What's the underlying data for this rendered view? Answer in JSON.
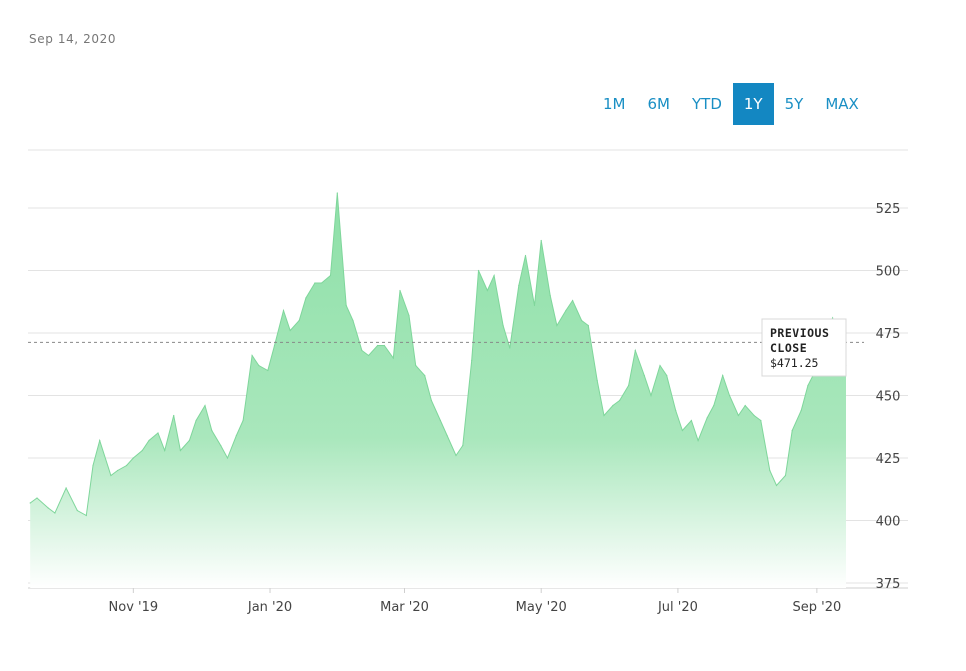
{
  "header": {
    "date": "Sep 14, 2020"
  },
  "range_selector": {
    "options": [
      "1M",
      "6M",
      "YTD",
      "1Y",
      "5Y",
      "MAX"
    ],
    "selected": "1Y"
  },
  "colors": {
    "area_fill": "#8ee0a8",
    "area_line": "#7fd69b",
    "accent": "#1387c2",
    "grid": "#e3e3e3",
    "reference_line": "#888888"
  },
  "chart_data": {
    "type": "area",
    "title": "",
    "xlabel": "",
    "ylabel": "",
    "ylim": [
      375,
      538
    ],
    "x_ticks": [
      "Nov '19",
      "Jan '20",
      "Mar '20",
      "May '20",
      "Jul '20",
      "Sep '20"
    ],
    "y_ticks": [
      375,
      400,
      425,
      450,
      475,
      500,
      525
    ],
    "grid": true,
    "reference_line": {
      "label_line1": "PREVIOUS",
      "label_line2": "CLOSE",
      "value_label": "$471.25",
      "value": 471.25
    },
    "series": [
      {
        "x": [
          "2019-09-16",
          "2019-09-19",
          "2019-09-24",
          "2019-09-27",
          "2019-10-02",
          "2019-10-07",
          "2019-10-11",
          "2019-10-14",
          "2019-10-17",
          "2019-10-22",
          "2019-10-25",
          "2019-10-29",
          "2019-11-01",
          "2019-11-05",
          "2019-11-08",
          "2019-11-12",
          "2019-11-15",
          "2019-11-19",
          "2019-11-22",
          "2019-11-26",
          "2019-11-29",
          "2019-12-03",
          "2019-12-06",
          "2019-12-10",
          "2019-12-13",
          "2019-12-17",
          "2019-12-20",
          "2019-12-24",
          "2019-12-27",
          "2019-12-31",
          "2020-01-03",
          "2020-01-07",
          "2020-01-10",
          "2020-01-14",
          "2020-01-17",
          "2020-01-21",
          "2020-01-24",
          "2020-01-28",
          "2020-01-31",
          "2020-02-04",
          "2020-02-07",
          "2020-02-11",
          "2020-02-14",
          "2020-02-18",
          "2020-02-21",
          "2020-02-25",
          "2020-02-28",
          "2020-03-03",
          "2020-03-06",
          "2020-03-10",
          "2020-03-13",
          "2020-03-17",
          "2020-03-20",
          "2020-03-24",
          "2020-03-27",
          "2020-03-31",
          "2020-04-03",
          "2020-04-07",
          "2020-04-10",
          "2020-04-14",
          "2020-04-17",
          "2020-04-21",
          "2020-04-24",
          "2020-04-28",
          "2020-05-01",
          "2020-05-05",
          "2020-05-08",
          "2020-05-12",
          "2020-05-15",
          "2020-05-19",
          "2020-05-22",
          "2020-05-26",
          "2020-05-29",
          "2020-06-02",
          "2020-06-05",
          "2020-06-09",
          "2020-06-12",
          "2020-06-16",
          "2020-06-19",
          "2020-06-23",
          "2020-06-26",
          "2020-06-30",
          "2020-07-03",
          "2020-07-07",
          "2020-07-10",
          "2020-07-14",
          "2020-07-17",
          "2020-07-21",
          "2020-07-24",
          "2020-07-28",
          "2020-07-31",
          "2020-08-04",
          "2020-08-07",
          "2020-08-11",
          "2020-08-14",
          "2020-08-18",
          "2020-08-21",
          "2020-08-25",
          "2020-08-28",
          "2020-09-01",
          "2020-09-04",
          "2020-09-08",
          "2020-09-11",
          "2020-09-14"
        ],
        "values": [
          407,
          409,
          405,
          403,
          413,
          404,
          402,
          422,
          432,
          418,
          420,
          422,
          425,
          428,
          432,
          435,
          428,
          442,
          428,
          432,
          440,
          446,
          436,
          430,
          425,
          434,
          440,
          466,
          462,
          460,
          470,
          484,
          476,
          480,
          489,
          495,
          495,
          498,
          531,
          486,
          480,
          468,
          466,
          470,
          470,
          465,
          492,
          482,
          462,
          458,
          448,
          440,
          434,
          426,
          430,
          464,
          500,
          492,
          498,
          478,
          469,
          494,
          506,
          486,
          512,
          490,
          478,
          484,
          488,
          480,
          478,
          456,
          442,
          446,
          448,
          454,
          468,
          458,
          450,
          462,
          458,
          444,
          436,
          440,
          432,
          441,
          446,
          458,
          450,
          442,
          446,
          442,
          440,
          420,
          414,
          418,
          436,
          444,
          454,
          461,
          474,
          481,
          466,
          462
        ]
      }
    ]
  }
}
